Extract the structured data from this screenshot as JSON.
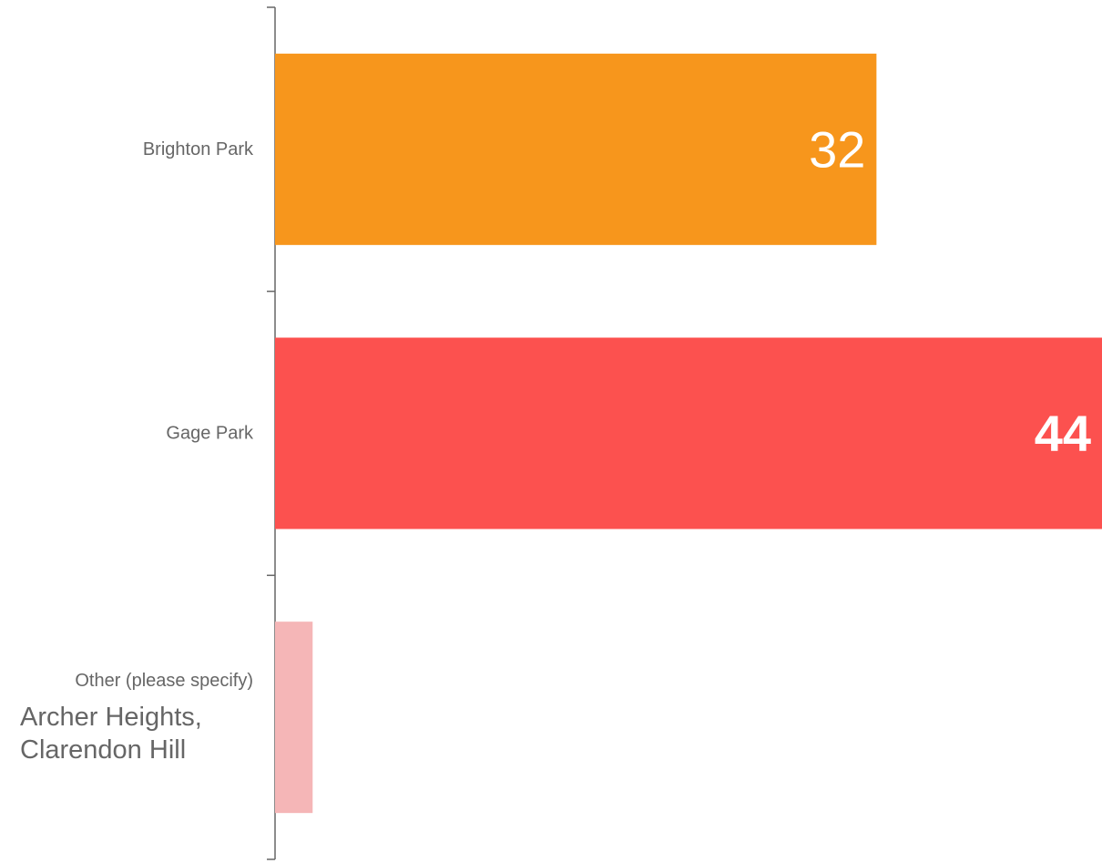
{
  "chart_data": {
    "type": "bar",
    "orientation": "horizontal",
    "categories": [
      "Brighton Park",
      "Gage Park",
      "Other (please specify)"
    ],
    "values": [
      32,
      44,
      2
    ],
    "value_labels": [
      "32",
      "44",
      ""
    ],
    "category_notes": [
      [],
      [],
      [
        "Archer Heights,",
        "Clarendon Hill"
      ]
    ],
    "colors": [
      "#F7961C",
      "#FC514F",
      "#F5B6B7"
    ],
    "value_label_colors": [
      "#ffffff",
      "#ffffff",
      "#ffffff"
    ],
    "value_label_weights": [
      "normal",
      "bold",
      "normal"
    ],
    "axis_color": "#666666",
    "xlim": [
      0,
      44
    ],
    "grid": false,
    "legend": "none",
    "title": "",
    "xlabel": "",
    "ylabel": ""
  }
}
